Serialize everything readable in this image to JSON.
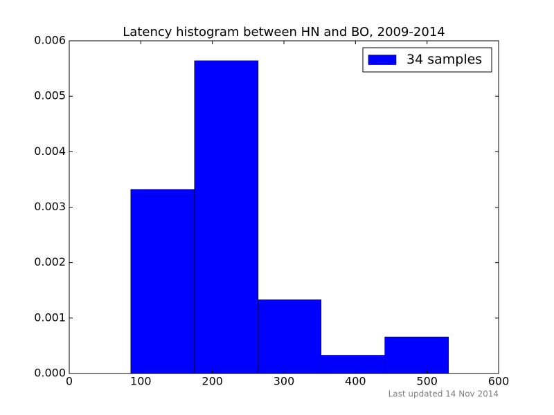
{
  "chart_data": {
    "type": "histogram",
    "title": "Latency histogram between HN and BO, 2009-2014",
    "bins": [
      86,
      175,
      264,
      352,
      441,
      530
    ],
    "series": [
      {
        "name": "34 samples",
        "color": "#0000ff",
        "values": [
          0.00332,
          0.00564,
          0.00133,
          0.00033,
          0.00066
        ]
      }
    ],
    "xlim": [
      0,
      600
    ],
    "xticks": [
      0,
      100,
      200,
      300,
      400,
      500,
      600
    ],
    "ylim": [
      0,
      0.006
    ],
    "yticks": [
      {
        "value": 0,
        "label": "0.000"
      },
      {
        "value": 0.001,
        "label": "0.001"
      },
      {
        "value": 0.002,
        "label": "0.002"
      },
      {
        "value": 0.003,
        "label": "0.003"
      },
      {
        "value": 0.004,
        "label": "0.004"
      },
      {
        "value": 0.005,
        "label": "0.005"
      },
      {
        "value": 0.006,
        "label": "0.006"
      }
    ],
    "legend": "upper right",
    "grid": false,
    "footnote": "Last updated 14 Nov 2014"
  }
}
